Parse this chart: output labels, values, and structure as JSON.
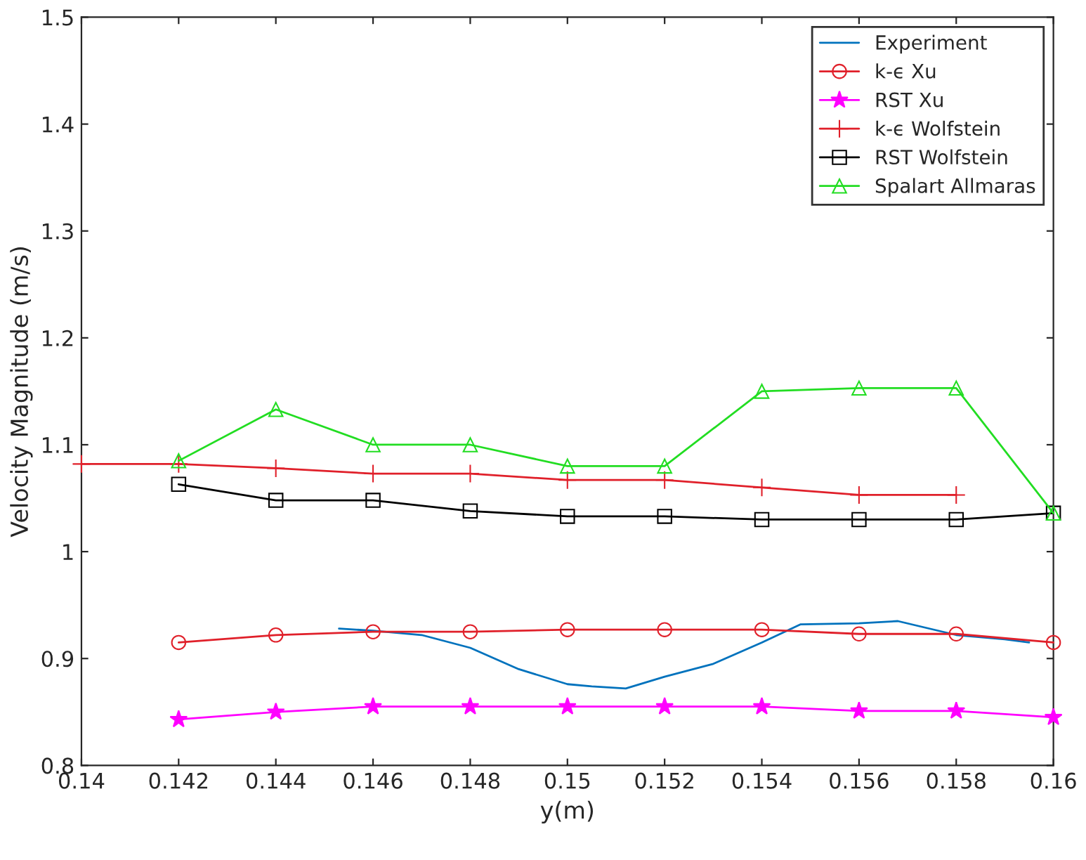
{
  "chart_data": {
    "type": "line",
    "xlabel": "y(m)",
    "ylabel": "Velocity Magnitude (m/s)",
    "xlim": [
      0.14,
      0.16
    ],
    "xticks": [
      0.14,
      0.142,
      0.144,
      0.146,
      0.148,
      0.15,
      0.152,
      0.154,
      0.156,
      0.158,
      0.16
    ],
    "ylim": [
      0.8,
      1.5
    ],
    "yticks": [
      0.8,
      0.9,
      1,
      1.1,
      1.2,
      1.3,
      1.4,
      1.5
    ],
    "grid": false,
    "legend": "top right",
    "line_style": "solid",
    "series": [
      {
        "name": "Experiment",
        "color": "#0072bd",
        "marker": "none",
        "x": [
          0.1453,
          0.146,
          0.147,
          0.148,
          0.149,
          0.15,
          0.1505,
          0.1512,
          0.152,
          0.153,
          0.154,
          0.1548,
          0.156,
          0.1568,
          0.158,
          0.159,
          0.1595
        ],
        "values": [
          0.928,
          0.926,
          0.922,
          0.91,
          0.89,
          0.876,
          0.874,
          0.872,
          0.883,
          0.895,
          0.915,
          0.932,
          0.933,
          0.935,
          0.922,
          0.918,
          0.915
        ]
      },
      {
        "name": "k-ϵ Xu",
        "color": "#e0202a",
        "marker": "circle",
        "x": [
          0.142,
          0.144,
          0.146,
          0.148,
          0.15,
          0.152,
          0.154,
          0.156,
          0.158,
          0.16
        ],
        "values": [
          0.915,
          0.922,
          0.925,
          0.925,
          0.927,
          0.927,
          0.927,
          0.923,
          0.923,
          0.915
        ]
      },
      {
        "name": "RST Xu",
        "color": "#ff00ff",
        "marker": "star",
        "x": [
          0.142,
          0.144,
          0.146,
          0.148,
          0.15,
          0.152,
          0.154,
          0.156,
          0.158,
          0.16
        ],
        "values": [
          0.843,
          0.85,
          0.855,
          0.855,
          0.855,
          0.855,
          0.855,
          0.851,
          0.851,
          0.845
        ]
      },
      {
        "name": "k-ϵ Wolfstein",
        "color": "#e0202a",
        "marker": "cross",
        "x": [
          0.14,
          0.142,
          0.144,
          0.146,
          0.148,
          0.15,
          0.152,
          0.154,
          0.156,
          0.158
        ],
        "values": [
          1.082,
          1.082,
          1.078,
          1.073,
          1.073,
          1.067,
          1.067,
          1.06,
          1.053,
          1.053
        ]
      },
      {
        "name": "RST Wolfstein",
        "color": "#000000",
        "marker": "square",
        "x": [
          0.142,
          0.144,
          0.146,
          0.148,
          0.15,
          0.152,
          0.154,
          0.156,
          0.158,
          0.16
        ],
        "values": [
          1.063,
          1.048,
          1.048,
          1.038,
          1.033,
          1.033,
          1.03,
          1.03,
          1.03,
          1.036
        ]
      },
      {
        "name": "Spalart Allmaras",
        "color": "#22dd22",
        "marker": "triangle",
        "x": [
          0.142,
          0.144,
          0.146,
          0.148,
          0.15,
          0.152,
          0.154,
          0.156,
          0.158,
          0.16
        ],
        "values": [
          1.085,
          1.133,
          1.1,
          1.1,
          1.08,
          1.08,
          1.15,
          1.153,
          1.153,
          1.036
        ]
      }
    ]
  }
}
